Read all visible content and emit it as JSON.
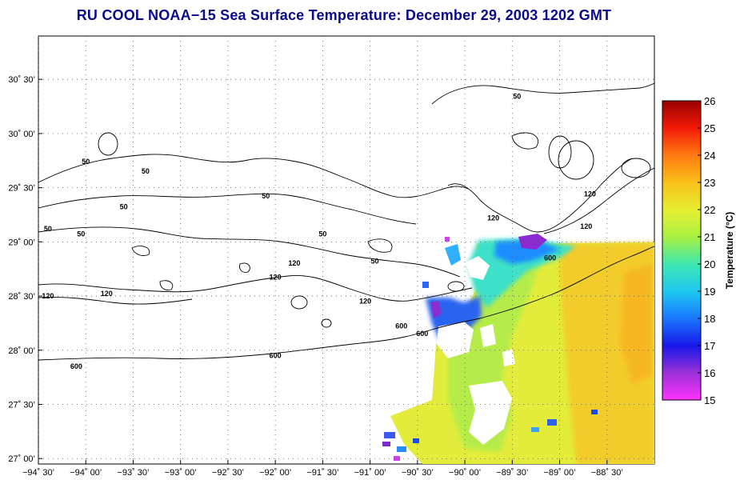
{
  "title": "RU COOL  NOAA−15  Sea Surface Temperature:  December 29, 2003 1202 GMT",
  "map": {
    "lon_range": [
      -94.5,
      -88.0
    ],
    "lat_range": [
      26.95,
      30.9
    ],
    "lat_ticks": [
      {
        "value": 30.5,
        "label": "30˚ 30’"
      },
      {
        "value": 30.0,
        "label": "30˚ 00’"
      },
      {
        "value": 29.5,
        "label": "29˚ 30’"
      },
      {
        "value": 29.0,
        "label": "29˚ 00’"
      },
      {
        "value": 28.5,
        "label": "28˚ 30’"
      },
      {
        "value": 28.0,
        "label": "28˚ 00’"
      },
      {
        "value": 27.5,
        "label": "27˚ 30’"
      },
      {
        "value": 27.0,
        "label": "27˚ 00’"
      }
    ],
    "lon_ticks": [
      {
        "value": -94.5,
        "label": "−94˚ 30’"
      },
      {
        "value": -94.0,
        "label": "−94˚ 00’"
      },
      {
        "value": -93.5,
        "label": "−93˚ 30’"
      },
      {
        "value": -93.0,
        "label": "−93˚ 00’"
      },
      {
        "value": -92.5,
        "label": "−92˚ 30’"
      },
      {
        "value": -92.0,
        "label": "−92˚ 00’"
      },
      {
        "value": -91.5,
        "label": "−91˚ 30’"
      },
      {
        "value": -91.0,
        "label": "−91˚ 00’"
      },
      {
        "value": -90.5,
        "label": "−90˚ 30’"
      },
      {
        "value": -90.0,
        "label": "−90˚ 00’"
      },
      {
        "value": -89.5,
        "label": "−89˚ 30’"
      },
      {
        "value": -89.0,
        "label": "−89˚ 00’"
      },
      {
        "value": -88.5,
        "label": "−88˚ 30’"
      }
    ],
    "isobath_labels": [
      {
        "text": "50",
        "lon": -94.0,
        "lat": 29.72
      },
      {
        "text": "50",
        "lon": -93.37,
        "lat": 29.63
      },
      {
        "text": "50",
        "lon": -93.6,
        "lat": 29.3
      },
      {
        "text": "50",
        "lon": -94.4,
        "lat": 29.1
      },
      {
        "text": "50",
        "lon": -94.05,
        "lat": 29.05
      },
      {
        "text": "50",
        "lon": -92.1,
        "lat": 29.4
      },
      {
        "text": "50",
        "lon": -91.5,
        "lat": 29.05
      },
      {
        "text": "50",
        "lon": -90.95,
        "lat": 28.8
      },
      {
        "text": "50",
        "lon": -89.45,
        "lat": 30.32
      },
      {
        "text": "120",
        "lon": -94.4,
        "lat": 28.48
      },
      {
        "text": "120",
        "lon": -93.78,
        "lat": 28.5
      },
      {
        "text": "120",
        "lon": -92.0,
        "lat": 28.65
      },
      {
        "text": "120",
        "lon": -91.8,
        "lat": 28.78
      },
      {
        "text": "120",
        "lon": -91.05,
        "lat": 28.43
      },
      {
        "text": "120",
        "lon": -88.68,
        "lat": 29.42
      },
      {
        "text": "120",
        "lon": -89.7,
        "lat": 29.2
      },
      {
        "text": "120",
        "lon": -88.72,
        "lat": 29.12
      },
      {
        "text": "600",
        "lon": -94.1,
        "lat": 27.83
      },
      {
        "text": "600",
        "lon": -92.0,
        "lat": 27.93
      },
      {
        "text": "600",
        "lon": -90.67,
        "lat": 28.2
      },
      {
        "text": "600",
        "lon": -90.45,
        "lat": 28.13
      },
      {
        "text": "600",
        "lon": -89.1,
        "lat": 28.83
      }
    ],
    "sst_region_note": "Satellite SST data covers the eastern part of the map (approx. -90.9 to -88.0 longitude); warm 21-23 C offshore, cooler 15-19 C near the Mississippi delta, white cloud gaps."
  },
  "colorbar": {
    "title": "Temperature (°C)",
    "min": 15,
    "max": 26,
    "ticks": [
      "15",
      "16",
      "17",
      "18",
      "19",
      "20",
      "21",
      "22",
      "23",
      "24",
      "25",
      "26"
    ],
    "stops": [
      "#ff33ff",
      "#9b30d8",
      "#1818e8",
      "#1a78ff",
      "#1ec8f0",
      "#3fe8b0",
      "#a8f040",
      "#e8ee30",
      "#f8c018",
      "#ff7a10",
      "#f21a08",
      "#980000"
    ]
  }
}
